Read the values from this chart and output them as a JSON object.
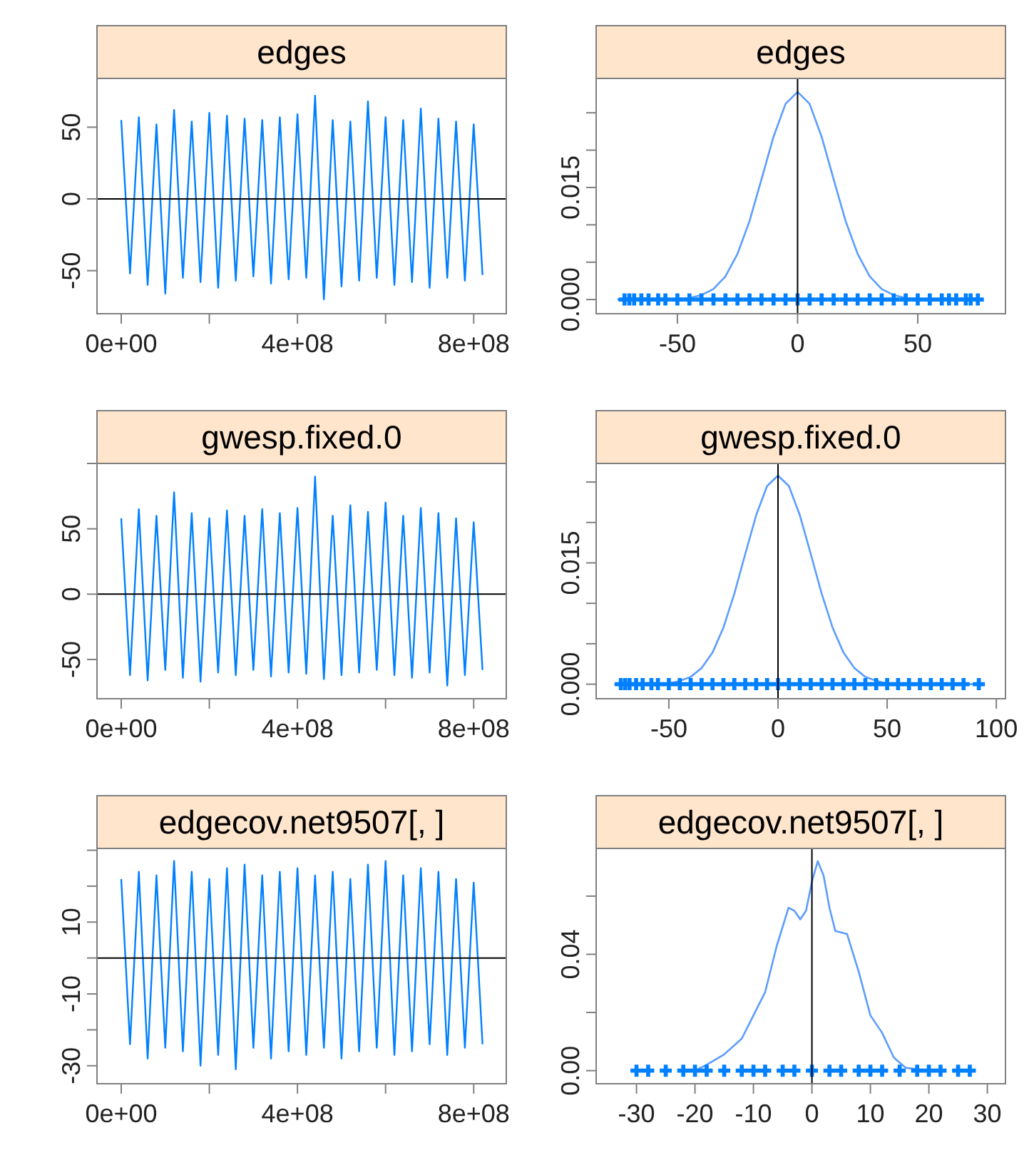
{
  "chart_data": [
    {
      "type": "line",
      "title": "edges",
      "xlim": [
        -55000000.0,
        874000000.0
      ],
      "ylim": [
        -80,
        84
      ],
      "xticks": [
        {
          "value": 0,
          "label": "0e+00"
        },
        {
          "value": 200000000.0,
          "label": null
        },
        {
          "value": 400000000.0,
          "label": "4e+08"
        },
        {
          "value": 600000000.0,
          "label": null
        },
        {
          "value": 800000000.0,
          "label": "8e+08"
        }
      ],
      "yticks": [
        -50,
        0,
        50
      ],
      "ref_lines": [
        {
          "axis": "y",
          "value": 0,
          "color": "#000000"
        }
      ],
      "series": [
        {
          "color": "#0080ff",
          "x": [
            0,
            20000000.0,
            40000000.0,
            60000000.0,
            80000000.0,
            100000000.0,
            120000000.0,
            140000000.0,
            160000000.0,
            180000000.0,
            200000000.0,
            220000000.0,
            240000000.0,
            260000000.0,
            280000000.0,
            300000000.0,
            320000000.0,
            340000000.0,
            360000000.0,
            380000000.0,
            400000000.0,
            420000000.0,
            440000000.0,
            460000000.0,
            480000000.0,
            500000000.0,
            520000000.0,
            540000000.0,
            560000000.0,
            580000000.0,
            600000000.0,
            620000000.0,
            640000000.0,
            660000000.0,
            680000000.0,
            700000000.0,
            720000000.0,
            740000000.0,
            760000000.0,
            780000000.0,
            800000000.0,
            820000000.0
          ],
          "values": [
            55,
            -52,
            57,
            -60,
            52,
            -66,
            62,
            -55,
            54,
            -58,
            60,
            -62,
            58,
            -57,
            56,
            -54,
            55,
            -59,
            57,
            -56,
            59,
            -55,
            72,
            -70,
            55,
            -61,
            54,
            -57,
            68,
            -55,
            57,
            -60,
            55,
            -58,
            63,
            -62,
            56,
            -55,
            54,
            -57,
            52,
            -53
          ]
        }
      ]
    },
    {
      "type": "line",
      "title": "edges",
      "xlim": [
        -83.8,
        86.5
      ],
      "ylim": [
        -0.0019,
        0.0296
      ],
      "xticks": [
        -50,
        0,
        50
      ],
      "yticks": [
        {
          "value": 0,
          "label": "0.000"
        },
        {
          "value": 0.005,
          "label": null
        },
        {
          "value": 0.01,
          "label": null
        },
        {
          "value": 0.015,
          "label": "0.015"
        },
        {
          "value": 0.02,
          "label": null
        },
        {
          "value": 0.025,
          "label": null
        }
      ],
      "ref_lines": [
        {
          "axis": "x",
          "value": 0,
          "color": "#000000"
        }
      ],
      "series": [
        {
          "color": "#5c9dff",
          "x": [
            -75,
            -70,
            -65,
            -60,
            -55,
            -50,
            -45,
            -40,
            -35,
            -30,
            -25,
            -20,
            -15,
            -10,
            -5,
            0,
            5,
            10,
            15,
            20,
            25,
            30,
            35,
            40,
            45,
            50,
            55,
            60,
            65,
            70,
            75
          ],
          "values": [
            0,
            0,
            0,
            0,
            0,
            0.0001,
            0.0002,
            0.0006,
            0.0014,
            0.0031,
            0.0061,
            0.0105,
            0.0161,
            0.0218,
            0.0262,
            0.0278,
            0.0262,
            0.0218,
            0.0161,
            0.0105,
            0.0061,
            0.0031,
            0.0014,
            0.0006,
            0.0002,
            0.0001,
            0,
            0,
            0,
            0,
            0
          ]
        },
        {
          "type": "scatter",
          "marker": "cross",
          "color": "#0080ff",
          "x": [
            -72,
            -70,
            -68,
            -65,
            -62,
            -58,
            -55,
            -50,
            -45,
            -40,
            -35,
            -30,
            -25,
            -20,
            -15,
            -10,
            -5,
            0,
            5,
            10,
            15,
            20,
            25,
            30,
            35,
            40,
            45,
            50,
            55,
            60,
            63,
            66,
            70,
            72,
            75
          ],
          "values": [
            0,
            0,
            0,
            0,
            0,
            0,
            0,
            0,
            0,
            0,
            0,
            0,
            0,
            0,
            0,
            0,
            0,
            0,
            0,
            0,
            0,
            0,
            0,
            0,
            0,
            0,
            0,
            0,
            0,
            0,
            0,
            0,
            0,
            0,
            0
          ]
        }
      ]
    },
    {
      "type": "line",
      "title": "gwesp.fixed.0",
      "xlim": [
        -55000000.0,
        874000000.0
      ],
      "ylim": [
        -80,
        100
      ],
      "xticks": [
        {
          "value": 0,
          "label": "0e+00"
        },
        {
          "value": 200000000.0,
          "label": null
        },
        {
          "value": 400000000.0,
          "label": "4e+08"
        },
        {
          "value": 600000000.0,
          "label": null
        },
        {
          "value": 800000000.0,
          "label": "8e+08"
        }
      ],
      "yticks": [
        -50,
        0,
        50,
        {
          "value": 100,
          "label": null
        }
      ],
      "ref_lines": [
        {
          "axis": "y",
          "value": 0,
          "color": "#000000"
        }
      ],
      "series": [
        {
          "color": "#0080ff",
          "x": [
            0,
            20000000.0,
            40000000.0,
            60000000.0,
            80000000.0,
            100000000.0,
            120000000.0,
            140000000.0,
            160000000.0,
            180000000.0,
            200000000.0,
            220000000.0,
            240000000.0,
            260000000.0,
            280000000.0,
            300000000.0,
            320000000.0,
            340000000.0,
            360000000.0,
            380000000.0,
            400000000.0,
            420000000.0,
            440000000.0,
            460000000.0,
            480000000.0,
            500000000.0,
            520000000.0,
            540000000.0,
            560000000.0,
            580000000.0,
            600000000.0,
            620000000.0,
            640000000.0,
            660000000.0,
            680000000.0,
            700000000.0,
            720000000.0,
            740000000.0,
            760000000.0,
            780000000.0,
            800000000.0,
            820000000.0
          ],
          "values": [
            58,
            -62,
            65,
            -66,
            60,
            -58,
            78,
            -64,
            62,
            -67,
            58,
            -60,
            64,
            -62,
            60,
            -58,
            65,
            -63,
            62,
            -60,
            66,
            -61,
            90,
            -65,
            60,
            -62,
            68,
            -60,
            63,
            -58,
            70,
            -62,
            60,
            -64,
            66,
            -60,
            62,
            -70,
            58,
            -62,
            55,
            -58
          ]
        }
      ]
    },
    {
      "type": "line",
      "title": "gwesp.fixed.0",
      "xlim": [
        -83.3,
        104.2
      ],
      "ylim": [
        -0.0018,
        0.0273
      ],
      "xticks": [
        -50,
        0,
        50,
        100
      ],
      "yticks": [
        {
          "value": 0,
          "label": "0.000"
        },
        {
          "value": 0.005,
          "label": null
        },
        {
          "value": 0.01,
          "label": null
        },
        {
          "value": 0.015,
          "label": "0.015"
        },
        {
          "value": 0.02,
          "label": null
        },
        {
          "value": 0.025,
          "label": null
        }
      ],
      "ref_lines": [
        {
          "axis": "x",
          "value": 0,
          "color": "#000000"
        }
      ],
      "series": [
        {
          "color": "#5c9dff",
          "x": [
            -75,
            -70,
            -65,
            -60,
            -55,
            -50,
            -45,
            -40,
            -35,
            -30,
            -25,
            -20,
            -15,
            -10,
            -5,
            0,
            5,
            10,
            15,
            20,
            25,
            30,
            35,
            40,
            45,
            50,
            55,
            60,
            65,
            70,
            75,
            80,
            85,
            90
          ],
          "values": [
            0,
            0,
            0,
            0,
            0,
            0.0001,
            0.0004,
            0.0009,
            0.002,
            0.0039,
            0.007,
            0.0112,
            0.0161,
            0.0209,
            0.0245,
            0.0258,
            0.0245,
            0.0209,
            0.0161,
            0.0112,
            0.007,
            0.0039,
            0.002,
            0.0009,
            0.0004,
            0.0001,
            0,
            0,
            0,
            0,
            0,
            0,
            0,
            0
          ]
        },
        {
          "type": "scatter",
          "marker": "cross",
          "color": "#0080ff",
          "x": [
            -72,
            -70,
            -68,
            -65,
            -62,
            -58,
            -55,
            -50,
            -45,
            -40,
            -35,
            -30,
            -25,
            -20,
            -15,
            -10,
            -5,
            0,
            5,
            10,
            15,
            20,
            25,
            30,
            35,
            40,
            45,
            50,
            55,
            60,
            65,
            70,
            75,
            80,
            85,
            92
          ],
          "values": [
            0,
            0,
            0,
            0,
            0,
            0,
            0,
            0,
            0,
            0,
            0,
            0,
            0,
            0,
            0,
            0,
            0,
            0,
            0,
            0,
            0,
            0,
            0,
            0,
            0,
            0,
            0,
            0,
            0,
            0,
            0,
            0,
            0,
            0,
            0,
            0
          ]
        }
      ]
    },
    {
      "type": "line",
      "title": "edgecov.net9507[, ]",
      "xlim": [
        -55000000.0,
        874000000.0
      ],
      "ylim": [
        -35,
        30.5
      ],
      "xticks": [
        {
          "value": 0,
          "label": "0e+00"
        },
        {
          "value": 200000000.0,
          "label": null
        },
        {
          "value": 400000000.0,
          "label": "4e+08"
        },
        {
          "value": 600000000.0,
          "label": null
        },
        {
          "value": 800000000.0,
          "label": "8e+08"
        }
      ],
      "yticks": [
        -30,
        {
          "value": -20,
          "label": null
        },
        -10,
        {
          "value": 0,
          "label": null
        },
        10,
        {
          "value": 20,
          "label": null
        },
        {
          "value": 30,
          "label": null
        }
      ],
      "ref_lines": [
        {
          "axis": "y",
          "value": 0,
          "color": "#000000"
        }
      ],
      "series": [
        {
          "color": "#0080ff",
          "x": [
            0,
            20000000.0,
            40000000.0,
            60000000.0,
            80000000.0,
            100000000.0,
            120000000.0,
            140000000.0,
            160000000.0,
            180000000.0,
            200000000.0,
            220000000.0,
            240000000.0,
            260000000.0,
            280000000.0,
            300000000.0,
            320000000.0,
            340000000.0,
            360000000.0,
            380000000.0,
            400000000.0,
            420000000.0,
            440000000.0,
            460000000.0,
            480000000.0,
            500000000.0,
            520000000.0,
            540000000.0,
            560000000.0,
            580000000.0,
            600000000.0,
            620000000.0,
            640000000.0,
            660000000.0,
            680000000.0,
            700000000.0,
            720000000.0,
            740000000.0,
            760000000.0,
            780000000.0,
            800000000.0,
            820000000.0
          ],
          "values": [
            22,
            -24,
            24,
            -28,
            23,
            -25,
            27,
            -26,
            24,
            -30,
            22,
            -27,
            25,
            -31,
            26,
            -25,
            23,
            -28,
            24,
            -26,
            25,
            -27,
            23,
            -25,
            24,
            -28,
            22,
            -26,
            26,
            -25,
            27,
            -27,
            23,
            -26,
            25,
            -24,
            24,
            -27,
            22,
            -25,
            21,
            -24
          ]
        }
      ]
    },
    {
      "type": "line",
      "title": "edgecov.net9507[, ]",
      "xlim": [
        -36.9,
        33.1
      ],
      "ylim": [
        -0.0045,
        0.0764
      ],
      "xticks": [
        -30,
        -20,
        -10,
        0,
        10,
        20,
        30
      ],
      "yticks": [
        {
          "value": 0,
          "label": "0.00"
        },
        {
          "value": 0.02,
          "label": null
        },
        {
          "value": 0.04,
          "label": "0.04"
        },
        {
          "value": 0.06,
          "label": null
        }
      ],
      "ref_lines": [
        {
          "axis": "x",
          "value": 0,
          "color": "#000000"
        }
      ],
      "series": [
        {
          "color": "#5c9dff",
          "x": [
            -20,
            -18,
            -15,
            -12,
            -10,
            -8,
            -6,
            -4,
            -3,
            -2,
            -1,
            0,
            1,
            2,
            3,
            4,
            6,
            8,
            10,
            12,
            14,
            16,
            18,
            20
          ],
          "values": [
            0,
            0.002,
            0.0056,
            0.011,
            0.019,
            0.027,
            0.043,
            0.056,
            0.055,
            0.052,
            0.055,
            0.065,
            0.072,
            0.067,
            0.056,
            0.048,
            0.047,
            0.034,
            0.019,
            0.013,
            0.0045,
            0.001,
            0.0005,
            0
          ]
        },
        {
          "type": "scatter",
          "marker": "cross",
          "color": "#0080ff",
          "x": [
            -30,
            -28,
            -25,
            -22,
            -20,
            -18,
            -15,
            -12,
            -10,
            -8,
            -5,
            -3,
            0,
            3,
            5,
            8,
            10,
            12,
            15,
            18,
            20,
            22,
            25,
            27
          ],
          "values": [
            0,
            0,
            0,
            0,
            0,
            0,
            0,
            0,
            0,
            0,
            0,
            0,
            0,
            0,
            0,
            0,
            0,
            0,
            0,
            0,
            0,
            0,
            0,
            0
          ]
        }
      ]
    }
  ]
}
